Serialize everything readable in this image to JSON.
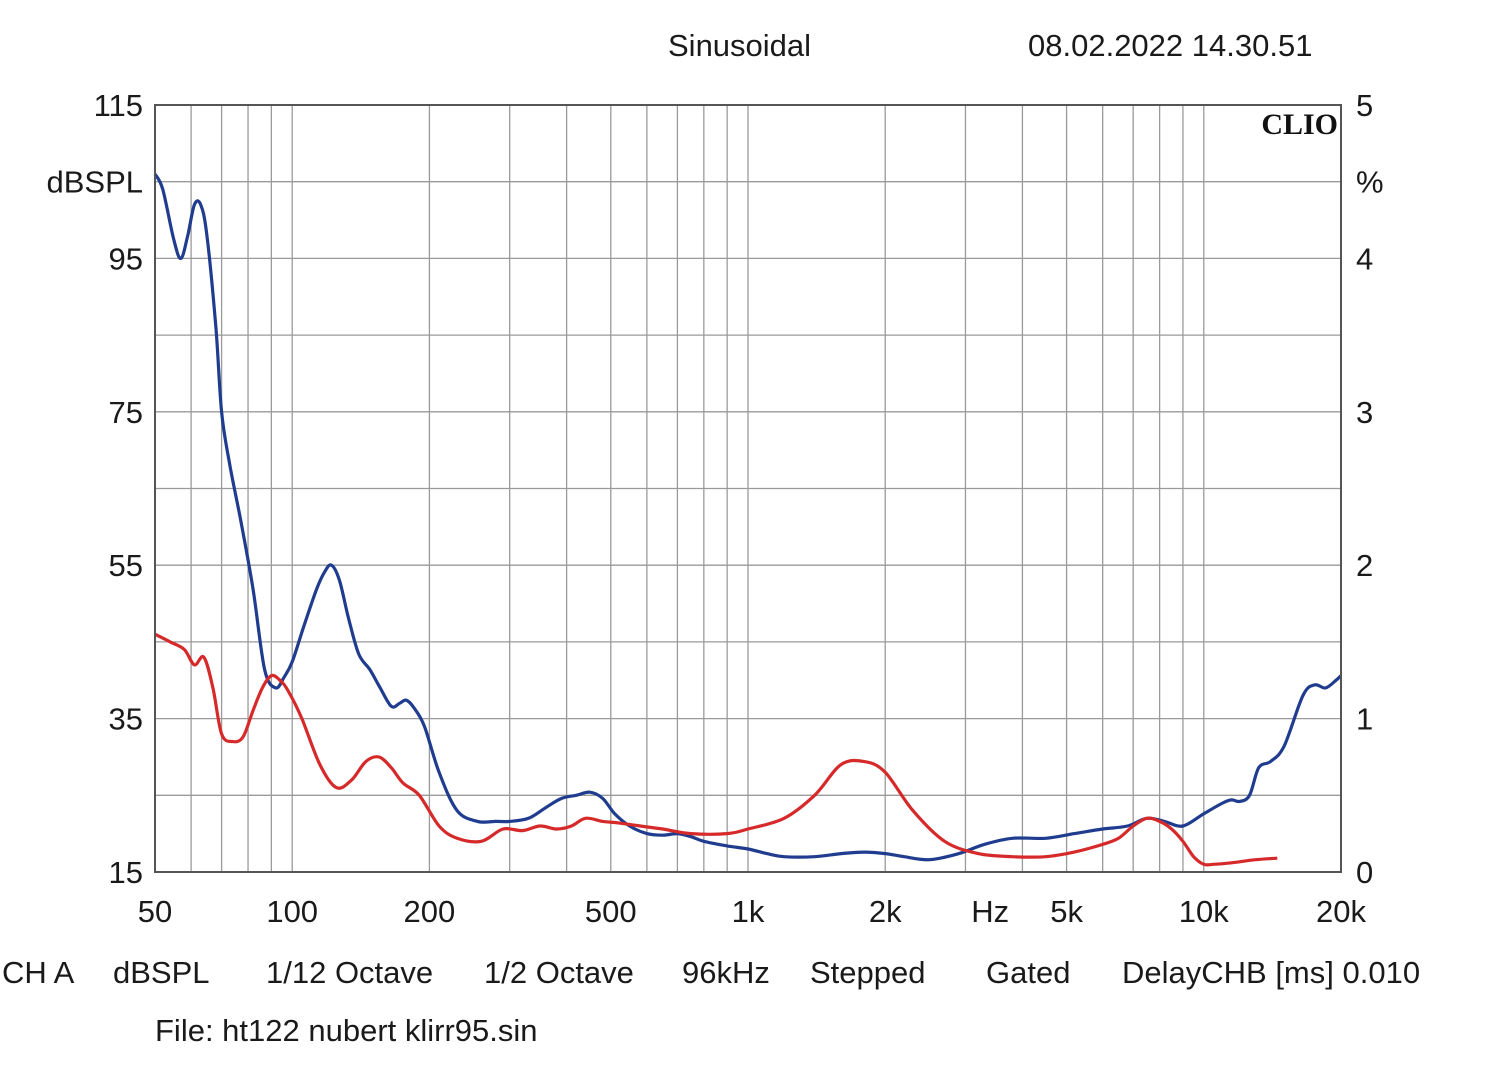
{
  "header": {
    "mode": "Sinusoidal",
    "timestamp": "08.02.2022 14.30.51"
  },
  "chart_data": {
    "type": "line",
    "brand": "CLIO",
    "x_scale": "log",
    "xlim": [
      50,
      20000
    ],
    "x_tick_values": [
      50,
      100,
      200,
      500,
      1000,
      2000,
      5000,
      10000,
      20000
    ],
    "x_tick_labels": [
      "50",
      "100",
      "200",
      "500",
      "1k",
      "2k",
      "5k",
      "10k",
      "20k"
    ],
    "x_unit": "Hz",
    "ylabel": "dBSPL",
    "ylim": [
      15,
      115
    ],
    "y_tick_labels": [
      "115",
      "95",
      "75",
      "55",
      "35",
      "15"
    ],
    "y2label": "%",
    "y2lim": [
      0,
      5
    ],
    "y2_tick_labels": [
      "5",
      "4",
      "3",
      "2",
      "1",
      "0"
    ],
    "grid": true,
    "series": [
      {
        "color": "#1f3c8f",
        "axis": "right",
        "x": [
          50,
          52,
          55,
          57,
          59,
          61,
          63,
          65,
          68,
          70,
          73,
          77,
          82,
          87,
          92,
          96,
          100,
          106,
          113,
          118,
          122,
          127,
          133,
          140,
          148,
          156,
          165,
          172,
          178,
          185,
          195,
          210,
          230,
          255,
          280,
          300,
          330,
          360,
          390,
          420,
          450,
          480,
          510,
          550,
          600,
          650,
          700,
          750,
          800,
          900,
          1000,
          1100,
          1200,
          1400,
          1600,
          1800,
          2000,
          2200,
          2500,
          2900,
          3300,
          3800,
          4500,
          5200,
          6000,
          6800,
          7500,
          8200,
          9000,
          10000,
          11000,
          11500,
          12000,
          12600,
          13200,
          14000,
          15000,
          16500,
          17500,
          18500,
          19500,
          20000
        ],
        "y": [
          4.55,
          4.45,
          4.12,
          4.0,
          4.15,
          4.35,
          4.35,
          4.15,
          3.55,
          3.0,
          2.65,
          2.3,
          1.85,
          1.32,
          1.2,
          1.27,
          1.37,
          1.6,
          1.84,
          1.96,
          2.0,
          1.9,
          1.65,
          1.42,
          1.32,
          1.2,
          1.08,
          1.1,
          1.12,
          1.07,
          0.95,
          0.65,
          0.4,
          0.33,
          0.33,
          0.33,
          0.35,
          0.42,
          0.48,
          0.5,
          0.52,
          0.48,
          0.38,
          0.3,
          0.25,
          0.24,
          0.25,
          0.23,
          0.2,
          0.17,
          0.15,
          0.12,
          0.1,
          0.1,
          0.12,
          0.13,
          0.12,
          0.1,
          0.08,
          0.12,
          0.18,
          0.22,
          0.22,
          0.25,
          0.28,
          0.3,
          0.35,
          0.33,
          0.3,
          0.38,
          0.45,
          0.47,
          0.46,
          0.5,
          0.68,
          0.72,
          0.82,
          1.15,
          1.22,
          1.2,
          1.25,
          1.28
        ]
      },
      {
        "color": "#d62a2a",
        "axis": "right",
        "x": [
          50,
          54,
          58,
          61,
          64,
          67,
          70,
          74,
          78,
          82,
          86,
          90,
          94,
          98,
          105,
          115,
          125,
          135,
          145,
          155,
          165,
          175,
          190,
          210,
          230,
          260,
          290,
          320,
          350,
          380,
          410,
          440,
          480,
          520,
          580,
          650,
          750,
          900,
          1000,
          1200,
          1400,
          1600,
          1800,
          2000,
          2300,
          2700,
          3200,
          3800,
          4500,
          5200,
          6000,
          6500,
          7000,
          7500,
          8000,
          8500,
          9000,
          9500,
          10000,
          10500,
          11500,
          13000,
          14500
        ],
        "y": [
          1.55,
          1.5,
          1.45,
          1.35,
          1.4,
          1.2,
          0.9,
          0.85,
          0.88,
          1.05,
          1.2,
          1.28,
          1.25,
          1.18,
          1.0,
          0.7,
          0.55,
          0.6,
          0.72,
          0.75,
          0.68,
          0.58,
          0.5,
          0.3,
          0.22,
          0.2,
          0.28,
          0.27,
          0.3,
          0.28,
          0.3,
          0.35,
          0.33,
          0.32,
          0.3,
          0.28,
          0.25,
          0.25,
          0.28,
          0.35,
          0.5,
          0.7,
          0.72,
          0.65,
          0.4,
          0.2,
          0.12,
          0.1,
          0.1,
          0.13,
          0.18,
          0.22,
          0.3,
          0.35,
          0.33,
          0.28,
          0.2,
          0.1,
          0.05,
          0.05,
          0.06,
          0.08,
          0.09
        ]
      }
    ]
  },
  "footer": {
    "line1": [
      "CH A",
      "dBSPL",
      "1/12 Octave",
      "1/2 Octave",
      "96kHz",
      "Stepped",
      "Gated",
      "DelayCHB [ms] 0.010"
    ],
    "file": "File: ht122 nubert klirr95.sin"
  }
}
